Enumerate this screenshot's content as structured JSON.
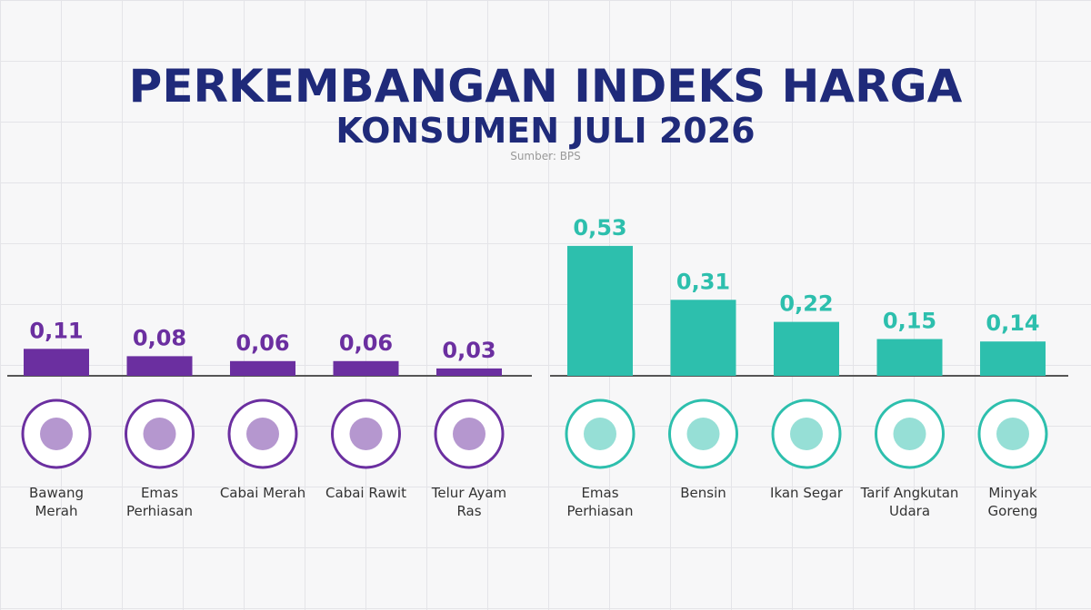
{
  "header": {
    "title": "PERKEMBANGAN INDEKS HARGA",
    "subtitle": "KONSUMEN JULI 2026",
    "source": "Sumber: BPS"
  },
  "chart_data": [
    {
      "type": "bar",
      "color": "#6b2fa0",
      "categories": [
        "Bawang Merah",
        "Emas Perhiasan",
        "Cabai Merah",
        "Cabai Rawit",
        "Telur Ayam Ras"
      ],
      "values": [
        0.11,
        0.08,
        0.06,
        0.06,
        0.03
      ],
      "value_labels": [
        "0,11",
        "0,08",
        "0,06",
        "0,06",
        "0,03"
      ]
    },
    {
      "type": "bar",
      "color": "#2dbfad",
      "categories": [
        "Emas Perhiasan",
        "Bensin",
        "Ikan Segar",
        "Tarif Angkutan Udara",
        "Minyak Goreng"
      ],
      "values": [
        0.53,
        0.31,
        0.22,
        0.15,
        0.14
      ],
      "value_labels": [
        "0,53",
        "0,31",
        "0,22",
        "0,15",
        "0,14"
      ]
    }
  ]
}
